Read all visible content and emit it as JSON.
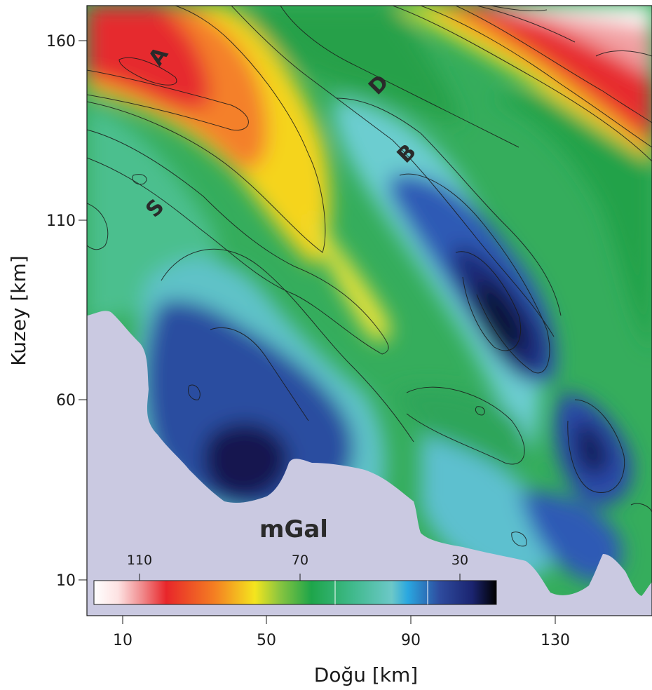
{
  "map": {
    "x_axis": {
      "title": "Doğu [km]",
      "ticks": [
        {
          "label": "10"
        },
        {
          "label": "50"
        },
        {
          "label": "90"
        },
        {
          "label": "130"
        }
      ]
    },
    "y_axis": {
      "title": "Kuzey [km]",
      "ticks": [
        {
          "label": "160"
        },
        {
          "label": "110"
        },
        {
          "label": "60"
        },
        {
          "label": "10"
        }
      ]
    },
    "zone_labels": [
      "A",
      "D",
      "B",
      "S"
    ],
    "colorbar": {
      "unit": "mGal",
      "ticks": [
        "110",
        "70",
        "30"
      ],
      "colors": {
        "high": "#ffffff",
        "red": "#e8262a",
        "orange": "#f47f22",
        "yellow": "#f4e51e",
        "green": "#1ea54a",
        "cyan": "#6cc8c8",
        "blue": "#2e4b9e",
        "low": "#0b0b2a"
      }
    },
    "land_color": "#cac9e1"
  }
}
